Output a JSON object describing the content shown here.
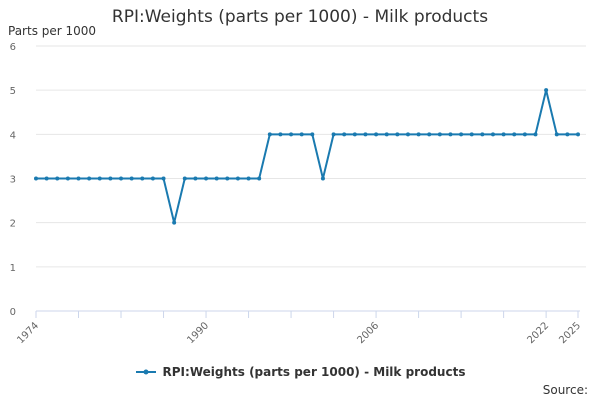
{
  "chart_data": {
    "type": "line",
    "title": "RPI:Weights (parts per 1000) - Milk products",
    "ylabel": "Parts per 1000",
    "xlabel": "",
    "ylim": [
      0,
      6
    ],
    "y_ticks": [
      0,
      1,
      2,
      3,
      4,
      5,
      6
    ],
    "x_tick_labels": [
      1974,
      1990,
      2006,
      2022,
      2025
    ],
    "grid": "horizontal",
    "legend": "bottom",
    "series": [
      {
        "name": "RPI:Weights (parts per 1000) - Milk products",
        "color": "#1a7ab0",
        "x": [
          1974,
          1975,
          1976,
          1977,
          1978,
          1979,
          1980,
          1981,
          1982,
          1983,
          1984,
          1985,
          1986,
          1987,
          1988,
          1989,
          1990,
          1991,
          1992,
          1993,
          1994,
          1995,
          1996,
          1997,
          1998,
          1999,
          2000,
          2001,
          2002,
          2003,
          2004,
          2005,
          2006,
          2007,
          2008,
          2009,
          2010,
          2011,
          2012,
          2013,
          2014,
          2015,
          2016,
          2017,
          2018,
          2019,
          2020,
          2021,
          2022,
          2023,
          2024,
          2025
        ],
        "values": [
          3,
          3,
          3,
          3,
          3,
          3,
          3,
          3,
          3,
          3,
          3,
          3,
          3,
          2,
          3,
          3,
          3,
          3,
          3,
          3,
          3,
          3,
          4,
          4,
          4,
          4,
          4,
          3,
          4,
          4,
          4,
          4,
          4,
          4,
          4,
          4,
          4,
          4,
          4,
          4,
          4,
          4,
          4,
          4,
          4,
          4,
          4,
          4,
          5,
          4,
          4,
          4
        ]
      }
    ],
    "source_label": "Source:"
  }
}
